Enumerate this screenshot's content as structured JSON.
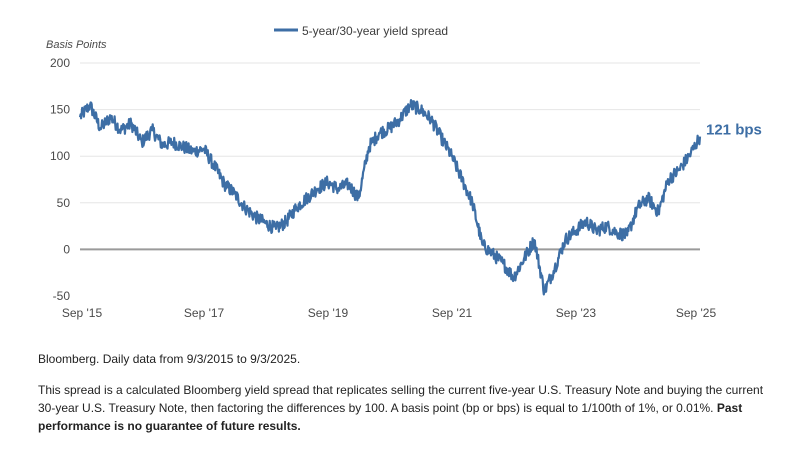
{
  "chart_data": {
    "type": "line",
    "ylabel": "Basis Points",
    "ylim": [
      -50,
      200
    ],
    "yticks": [
      200,
      150,
      100,
      50,
      0,
      -50
    ],
    "xlim": [
      "2015-09-03",
      "2025-09-03"
    ],
    "xticks": [
      {
        "date": "2015-09-03",
        "label": "Sep '15"
      },
      {
        "date": "2017-09-03",
        "label": "Sep '17"
      },
      {
        "date": "2019-09-03",
        "label": "Sep '19"
      },
      {
        "date": "2021-09-03",
        "label": "Sep '21"
      },
      {
        "date": "2023-09-03",
        "label": "Sep '23"
      },
      {
        "date": "2025-09-03",
        "label": "Sep '25"
      }
    ],
    "grid": true,
    "legend_position": "top",
    "series": [
      {
        "name": "5-year/30-year yield spread",
        "color": "#3d6ea5",
        "points": [
          [
            "2015-09-03",
            142
          ],
          [
            "2015-11-01",
            155
          ],
          [
            "2016-01-01",
            130
          ],
          [
            "2016-03-01",
            142
          ],
          [
            "2016-05-01",
            128
          ],
          [
            "2016-07-01",
            135
          ],
          [
            "2016-09-01",
            115
          ],
          [
            "2016-11-01",
            128
          ],
          [
            "2017-01-01",
            112
          ],
          [
            "2017-03-01",
            115
          ],
          [
            "2017-05-01",
            110
          ],
          [
            "2017-07-01",
            105
          ],
          [
            "2017-09-01",
            108
          ],
          [
            "2017-11-01",
            90
          ],
          [
            "2018-01-01",
            70
          ],
          [
            "2018-03-01",
            60
          ],
          [
            "2018-05-01",
            45
          ],
          [
            "2018-07-01",
            35
          ],
          [
            "2018-09-01",
            28
          ],
          [
            "2018-11-01",
            22
          ],
          [
            "2019-01-01",
            30
          ],
          [
            "2019-03-01",
            45
          ],
          [
            "2019-05-01",
            55
          ],
          [
            "2019-07-01",
            65
          ],
          [
            "2019-09-01",
            72
          ],
          [
            "2019-11-01",
            65
          ],
          [
            "2020-01-01",
            70
          ],
          [
            "2020-03-01",
            55
          ],
          [
            "2020-05-01",
            110
          ],
          [
            "2020-07-01",
            125
          ],
          [
            "2020-09-01",
            130
          ],
          [
            "2020-11-01",
            140
          ],
          [
            "2021-01-01",
            155
          ],
          [
            "2021-03-01",
            150
          ],
          [
            "2021-05-01",
            140
          ],
          [
            "2021-07-01",
            120
          ],
          [
            "2021-09-01",
            100
          ],
          [
            "2021-11-01",
            75
          ],
          [
            "2022-01-01",
            50
          ],
          [
            "2022-03-01",
            5
          ],
          [
            "2022-05-01",
            -5
          ],
          [
            "2022-07-01",
            -15
          ],
          [
            "2022-09-01",
            -30
          ],
          [
            "2022-11-01",
            -10
          ],
          [
            "2023-01-01",
            10
          ],
          [
            "2023-03-01",
            -45
          ],
          [
            "2023-05-01",
            -20
          ],
          [
            "2023-07-01",
            10
          ],
          [
            "2023-09-01",
            20
          ],
          [
            "2023-11-01",
            30
          ],
          [
            "2024-01-01",
            20
          ],
          [
            "2024-03-01",
            25
          ],
          [
            "2024-05-01",
            18
          ],
          [
            "2024-07-01",
            15
          ],
          [
            "2024-09-01",
            45
          ],
          [
            "2024-11-01",
            55
          ],
          [
            "2025-01-01",
            40
          ],
          [
            "2025-03-01",
            75
          ],
          [
            "2025-05-01",
            85
          ],
          [
            "2025-07-01",
            100
          ],
          [
            "2025-09-03",
            121
          ]
        ]
      }
    ],
    "annotations": [
      {
        "date": "2025-09-03",
        "value": 121,
        "text": "121 bps"
      }
    ]
  },
  "caption": {
    "source_note": "Bloomberg. Daily data from 9/3/2015 to 9/3/2025.",
    "description": "This spread is a calculated Bloomberg yield spread that replicates selling the current five-year U.S. Treasury Note and buying the current 30-year U.S. Treasury Note, then factoring the differences by 100. A basis point (bp or bps) is equal to 1/100th of 1%, or 0.01%.",
    "disclaimer": "Past performance is no guarantee of future results."
  }
}
